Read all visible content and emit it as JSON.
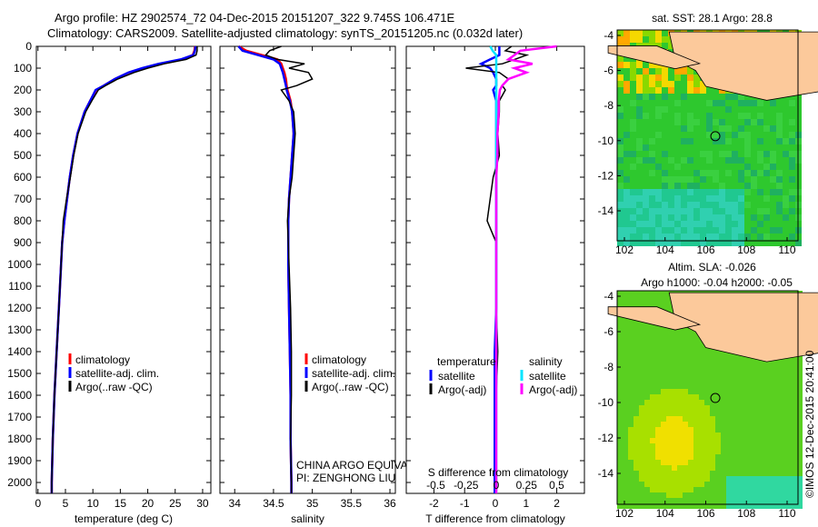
{
  "title_line1": "Argo profile: HZ 2902574_72 04-Dec-2015 20151207_322 9.745S 106.471E",
  "title_line2": "Climatology: CARS2009. Satellite-adjusted climatology: synTS_20151205.nc (0.032d later)",
  "credit": "©IMOS 12-Dec-2015 20:41:00",
  "colors": {
    "climatology": "#ff0000",
    "satellite": "#0000ff",
    "argo": "#000000",
    "sal_satellite": "#00e5ff",
    "sal_argo": "#ff00ff",
    "land": "#fcc99b",
    "sea": "#2fc82f"
  },
  "chart_data": [
    {
      "type": "line",
      "name": "temperature-panel",
      "xlabel": "temperature (deg C)",
      "xlim": [
        -0.3,
        31.5
      ],
      "xticks": [
        0,
        5,
        10,
        15,
        20,
        25,
        30
      ],
      "ylim": [
        0,
        2050
      ],
      "yticks": [
        0,
        100,
        200,
        300,
        400,
        500,
        600,
        700,
        800,
        900,
        1000,
        1100,
        1200,
        1300,
        1400,
        1500,
        1600,
        1700,
        1800,
        1900,
        2000
      ],
      "depth": [
        0,
        20,
        40,
        60,
        80,
        100,
        120,
        150,
        180,
        200,
        250,
        300,
        400,
        500,
        600,
        700,
        800,
        900,
        1000,
        1200,
        1400,
        1600,
        1800,
        2000,
        2050
      ],
      "series": [
        {
          "name": "climatology",
          "color": "#ff0000",
          "values": [
            28.6,
            28.5,
            28.2,
            26.2,
            22.5,
            19.2,
            16.6,
            14.0,
            12.0,
            10.6,
            9.5,
            8.5,
            7.2,
            6.4,
            5.8,
            5.3,
            4.8,
            4.4,
            4.2,
            3.8,
            3.4,
            3.0,
            2.7,
            2.5,
            2.5
          ]
        },
        {
          "name": "satellite-adj. clim.",
          "color": "#0000ff",
          "values": [
            28.7,
            28.6,
            28.3,
            26.0,
            22.0,
            19.0,
            16.5,
            14.0,
            12.0,
            10.5,
            9.5,
            8.5,
            7.2,
            6.4,
            5.8,
            5.3,
            4.8,
            4.4,
            4.2,
            3.8,
            3.4,
            3.0,
            2.7,
            2.5,
            2.5
          ]
        },
        {
          "name": "Argo(..raw -QC)",
          "color": "#000000",
          "values": [
            29.0,
            29.0,
            28.8,
            27.0,
            23.0,
            20.0,
            17.5,
            14.5,
            12.3,
            11.0,
            9.8,
            8.7,
            7.3,
            6.5,
            5.9,
            5.2,
            4.6,
            4.4,
            4.2,
            3.8,
            3.4,
            3.0,
            2.7,
            2.5,
            2.5
          ]
        }
      ]
    },
    {
      "type": "line",
      "name": "salinity-panel",
      "xlabel": "salinity",
      "xlim": [
        33.81,
        36.07
      ],
      "xticks": [
        34,
        34.5,
        35,
        35.5,
        36
      ],
      "ylim": [
        0,
        2050
      ],
      "depth": [
        0,
        20,
        40,
        60,
        80,
        100,
        120,
        150,
        180,
        200,
        250,
        300,
        400,
        500,
        600,
        700,
        800,
        900,
        1000,
        1200,
        1400,
        1600,
        1800,
        2000,
        2050
      ],
      "series": [
        {
          "name": "climatology",
          "color": "#ff0000",
          "values": [
            34.05,
            34.15,
            34.35,
            34.55,
            34.6,
            34.62,
            34.64,
            34.66,
            34.67,
            34.68,
            34.72,
            34.74,
            34.76,
            34.74,
            34.72,
            34.7,
            34.69,
            34.69,
            34.69,
            34.7,
            34.71,
            34.72,
            34.72,
            34.73,
            34.73
          ]
        },
        {
          "name": "satellite-adj. clim.",
          "color": "#0000ff",
          "values": [
            34.05,
            34.1,
            34.3,
            34.5,
            34.58,
            34.6,
            34.62,
            34.64,
            34.66,
            34.67,
            34.71,
            34.74,
            34.76,
            34.74,
            34.72,
            34.7,
            34.69,
            34.69,
            34.69,
            34.7,
            34.71,
            34.72,
            34.72,
            34.73,
            34.73
          ]
        },
        {
          "name": "Argo(..raw -QC)",
          "color": "#000000",
          "values": [
            34.6,
            34.45,
            34.4,
            34.55,
            34.9,
            34.7,
            34.95,
            35.0,
            34.8,
            34.6,
            34.7,
            34.76,
            34.78,
            34.76,
            34.74,
            34.7,
            34.68,
            34.69,
            34.7,
            34.72,
            34.73,
            34.73,
            34.72,
            34.73,
            34.73
          ]
        }
      ],
      "annotation_1": "CHINA ARGO EQUIVALENT",
      "annotation_2": "PI: ZENGHONG LIU"
    },
    {
      "type": "line",
      "name": "difference-panel",
      "xlabel": "T difference from climatology",
      "xlabel_top": "S difference from climatology",
      "xlim": [
        -2.9,
        2.9
      ],
      "xticks": [
        -2,
        -1,
        0,
        1,
        2
      ],
      "xticks_top": [
        -0.5,
        -0.25,
        0,
        0.25,
        0.5
      ],
      "ylim": [
        0,
        2050
      ],
      "depth": [
        0,
        20,
        40,
        60,
        80,
        100,
        120,
        150,
        180,
        200,
        250,
        300,
        400,
        500,
        600,
        700,
        800,
        900,
        1000,
        1200,
        1400,
        1600,
        1800,
        2000,
        2050
      ],
      "series": [
        {
          "name": "temperature satellite",
          "color": "#0000ff",
          "axis": "T",
          "values": [
            0.1,
            0.1,
            0.1,
            -0.2,
            -0.5,
            -0.2,
            -0.1,
            0,
            0,
            -0.1,
            0,
            0,
            0,
            0,
            0,
            0,
            0,
            0,
            0,
            0,
            -0.05,
            -0.05,
            -0.05,
            -0.05,
            -0.05
          ]
        },
        {
          "name": "temperature Argo(-adj)",
          "color": "#000000",
          "axis": "T",
          "values": [
            0.5,
            0.3,
            1.0,
            0.6,
            0.2,
            -1.0,
            0.1,
            0.4,
            0.2,
            0.3,
            0.1,
            0.1,
            0.05,
            0.1,
            -0.1,
            -0.2,
            -0.3,
            0,
            0,
            0,
            0.05,
            0,
            0,
            0,
            0
          ]
        },
        {
          "name": "salinity satellite",
          "color": "#00e5ff",
          "axis": "S",
          "values": [
            -0.05,
            -0.03,
            0,
            0,
            0,
            0,
            0,
            0,
            0,
            0,
            0,
            0,
            0,
            0,
            0,
            0,
            0,
            0,
            0,
            0,
            0,
            0,
            0,
            0,
            0
          ]
        },
        {
          "name": "salinity Argo(-adj)",
          "color": "#ff00ff",
          "axis": "S",
          "values": [
            0.5,
            0.2,
            0.15,
            0.1,
            0.3,
            0.15,
            0.25,
            0.1,
            0.05,
            0.03,
            0.02,
            0.02,
            0.01,
            0.01,
            0,
            0,
            0,
            0,
            0,
            0,
            0,
            0,
            0,
            0,
            0
          ]
        }
      ],
      "legend_temperature": "temperature",
      "legend_salinity": "salinity",
      "legend_satellite": "satellite",
      "legend_argo": "Argo(-adj)"
    },
    {
      "type": "heatmap",
      "name": "sst-map",
      "title": "sat. SST: 28.1 Argo: 28.8",
      "xlim": [
        101.2,
        111.6
      ],
      "ylim": [
        -15.5,
        -3.8
      ],
      "xticks": [
        102,
        104,
        106,
        108,
        110
      ],
      "yticks": [
        -4,
        -6,
        -8,
        -10,
        -12,
        -14
      ],
      "marker": {
        "lon": 106.471,
        "lat": -9.745
      }
    },
    {
      "type": "heatmap",
      "name": "sla-map",
      "title": "Altim. SLA: -0.026",
      "subtitle": "Argo h1000: -0.04 h2000: -0.05",
      "xlim": [
        101.2,
        111.6
      ],
      "ylim": [
        -15.5,
        -3.8
      ],
      "xticks": [
        102,
        104,
        106,
        108,
        110
      ],
      "yticks": [
        -4,
        -6,
        -8,
        -10,
        -12,
        -14
      ],
      "marker": {
        "lon": 106.471,
        "lat": -9.745
      }
    }
  ],
  "legend_labels": [
    "climatology",
    "satellite-adj. clim.",
    "Argo(..raw -QC)"
  ]
}
